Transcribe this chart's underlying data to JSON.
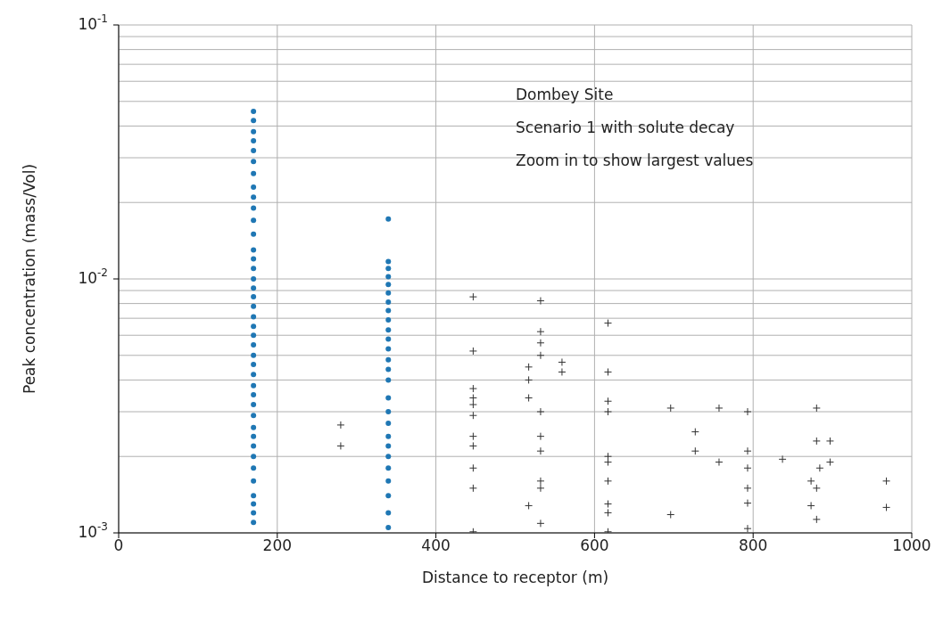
{
  "chart_data": {
    "type": "scatter",
    "xlabel": "Distance to receptor (m)",
    "ylabel": "Peak concentration (mass/Vol)",
    "annotations": [
      "Dombey Site",
      "Scenario 1 with solute decay",
      "Zoom in to show largest values"
    ],
    "xlim": [
      0,
      1000
    ],
    "xticks": [
      0,
      200,
      400,
      600,
      800,
      1000
    ],
    "ylim": [
      0.001,
      0.1
    ],
    "log": "y",
    "yticks": [
      {
        "value": 0.001,
        "label": "10$^{-3}$"
      },
      {
        "value": 0.01,
        "label": "10$^{-2}$"
      },
      {
        "value": 0.1,
        "label": "10$^{-1}$"
      }
    ],
    "grid": true,
    "series": [
      {
        "color": "#1f77b4",
        "marker": "circle",
        "x": [
          170,
          170,
          170,
          170,
          170,
          170,
          170,
          170,
          170,
          170,
          170,
          170,
          170,
          170,
          170,
          170,
          170,
          170,
          170,
          170,
          170,
          170,
          170,
          170,
          170,
          170,
          170,
          170,
          170,
          170,
          170,
          170,
          170,
          170,
          170,
          170,
          170,
          170,
          170,
          170
        ],
        "values": [
          0.0457,
          0.042,
          0.038,
          0.035,
          0.032,
          0.029,
          0.026,
          0.023,
          0.021,
          0.019,
          0.017,
          0.015,
          0.013,
          0.012,
          0.011,
          0.01,
          0.0092,
          0.0085,
          0.0078,
          0.0071,
          0.0065,
          0.006,
          0.0055,
          0.005,
          0.0046,
          0.0042,
          0.0038,
          0.0035,
          0.0032,
          0.0029,
          0.0026,
          0.0024,
          0.0022,
          0.002,
          0.0018,
          0.0016,
          0.0014,
          0.0013,
          0.0012,
          0.0011
        ]
      },
      {
        "color": "#1f77b4",
        "marker": "circle",
        "x": [
          340,
          340,
          340,
          340,
          340,
          340,
          340,
          340,
          340,
          340,
          340,
          340,
          340,
          340,
          340,
          340,
          340,
          340,
          340,
          340,
          340,
          340,
          340,
          340,
          340,
          340
        ],
        "values": [
          0.0172,
          0.0117,
          0.011,
          0.0102,
          0.0095,
          0.0088,
          0.0081,
          0.0075,
          0.0069,
          0.0063,
          0.0058,
          0.0053,
          0.0048,
          0.0044,
          0.004,
          0.0034,
          0.003,
          0.0027,
          0.0024,
          0.0022,
          0.002,
          0.0018,
          0.0016,
          0.0014,
          0.0012,
          0.00105
        ]
      },
      {
        "color": "#333333",
        "marker": "cross",
        "x": [
          280,
          280,
          447,
          447,
          447,
          447,
          447,
          447,
          447,
          447,
          447,
          447,
          447,
          532,
          532,
          532,
          532,
          532,
          532,
          532,
          532,
          532,
          532,
          517,
          517,
          517,
          517,
          559,
          559,
          617,
          617,
          617,
          617,
          617,
          617,
          617,
          617,
          617,
          617,
          696,
          696,
          727,
          727,
          757,
          757,
          793,
          793,
          793,
          793,
          793,
          793,
          837,
          873,
          873,
          880,
          880,
          880,
          880,
          884,
          897,
          897,
          968,
          968
        ],
        "values": [
          0.00266,
          0.0022,
          0.0085,
          0.0052,
          0.0037,
          0.0034,
          0.0032,
          0.0029,
          0.0024,
          0.0022,
          0.0018,
          0.0015,
          0.00101,
          0.0082,
          0.0062,
          0.0056,
          0.005,
          0.003,
          0.0024,
          0.0021,
          0.0016,
          0.0015,
          0.00109,
          0.0045,
          0.004,
          0.0034,
          0.00128,
          0.0047,
          0.0043,
          0.0067,
          0.0043,
          0.0033,
          0.003,
          0.002,
          0.0019,
          0.0016,
          0.0013,
          0.0012,
          0.00101,
          0.0031,
          0.00118,
          0.0025,
          0.0021,
          0.0031,
          0.0019,
          0.003,
          0.0021,
          0.0018,
          0.0015,
          0.00131,
          0.00104,
          0.00195,
          0.0016,
          0.00128,
          0.0031,
          0.0023,
          0.0015,
          0.00113,
          0.0018,
          0.0023,
          0.0019,
          0.0016,
          0.00126
        ]
      }
    ]
  }
}
